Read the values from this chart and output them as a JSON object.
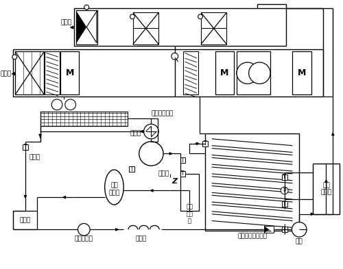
{
  "bg_color": "#ffffff",
  "line_color": "#000000",
  "labels": {
    "outlet": "出風口",
    "inlet": "進風口",
    "air_cooled_condenser": "風冷式冷凝器",
    "four_way_valve": "四通閥",
    "accumulator": "補償器",
    "liquid_fill": "加液口",
    "compressor": "制冷\n壓縮機",
    "vapor_separator": "汽液\n分離\n器",
    "receiver": "貯液器",
    "dryer_filter": "干燥過濾器",
    "capillary": "毛細管",
    "shell_evaporator": "臥式殼管式蒸發器",
    "steam_generator": "蒸汽\n發生器",
    "water_pump": "水泵"
  },
  "font_size": 6.5
}
